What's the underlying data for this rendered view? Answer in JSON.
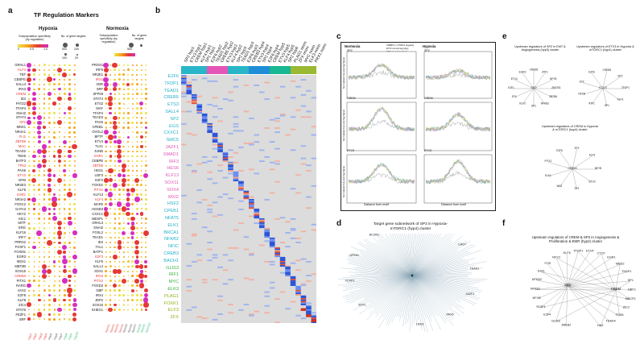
{
  "panels": {
    "a": "a",
    "b": "b",
    "c": "c",
    "d": "d",
    "e": "e",
    "f": "f"
  },
  "panel_a": {
    "title": "TF Regulation Markers",
    "hypoxia_label": "Hypoxia",
    "normoxia_label": "Normoxia",
    "legend_spec": "Subpopulation specificity (by regulation)",
    "legend_ticks": [
      "0",
      "0.5",
      "1.0"
    ],
    "legend_targets": "No. of gene targets",
    "legend_sizes": [
      "500",
      "200",
      "100",
      "20"
    ],
    "hypoxia_genes": [
      "GRHL1",
      "KLF4",
      "TEF",
      "CEBPG",
      "SALL4",
      "IRX3",
      "CREM",
      "ID4",
      "PATZ2",
      "TFAP4",
      "SNAI2",
      "STAT4",
      "SP2",
      "MNX1",
      "NR4A1",
      "FLI1",
      "ZBTB6",
      "MAC",
      "TEAD2",
      "TBX5",
      "BATF3",
      "TP63",
      "PAX6",
      "ETV3",
      "MYB",
      "NR2E3",
      "KLF5",
      "ESR1",
      "NR4A2",
      "FOXC2",
      "GATA3",
      "HEY2",
      "HIC1",
      "MITF",
      "ERG",
      "KLF16",
      "IRF7",
      "PRRX2",
      "FOXF1",
      "FOXM1",
      "EGR3",
      "MSX1",
      "MEF2B",
      "SOX15",
      "CREB3",
      "PITX1",
      "RARG",
      "VAX2",
      "E2F8",
      "KLF8",
      "ZIC4",
      "STAT6",
      "FEZF1",
      "SRF"
    ],
    "normoxia_genes": [
      "PROX1",
      "IRF5",
      "NR2E1",
      "IRX1",
      "VDR",
      "SRF",
      "ZFP28",
      "STAT4",
      "ETS2",
      "MAF",
      "TFAP4",
      "TEAD3",
      "PAX6",
      "CPEB1",
      "OVOL2",
      "BPTF",
      "ETV4",
      "TLX1",
      "JUNB",
      "ESR1",
      "CEBPB",
      "ZBTB6",
      "HES1",
      "USF3",
      "E2F2",
      "FOXD1",
      "PITX1",
      "KLF13",
      "KLF4",
      "MAFB",
      "HOXB3",
      "CXXC1",
      "MESP1",
      "GRHL3",
      "SNAI2",
      "FOXL2",
      "TEAD1",
      "ID4",
      "TAL1",
      "BATF1",
      "E2F3",
      "KLF5",
      "SALL4",
      "SOX1",
      "IRX3",
      "PITX2",
      "FOXD3",
      "GBP",
      "IRX4",
      "JDP2",
      "SOX15",
      "EHEG1"
    ],
    "hypoxia_red": [
      "KLF4",
      "CREM",
      "SP2",
      "FLI1",
      "ZBTB6",
      "MAC",
      "TP63",
      "ETV3",
      "ESR1",
      "CREB3"
    ],
    "normoxia_red": [
      "IRX1",
      "ESR1",
      "ZBTB6",
      "PITX1",
      "KLF4",
      "CREB3",
      "E2F3",
      "IRX3",
      "PITX2"
    ],
    "hypoxia_clusters": [
      "Hyp1",
      "Hyp2",
      "Hyp3",
      "Hyp4",
      "Hyp5",
      "Hyp6",
      "Hyp7",
      "Hyp8",
      "Hyp9",
      "Hyp10"
    ],
    "normoxia_clusters": [
      "Norm1",
      "Norm2",
      "Norm3",
      "Norm4",
      "Norm5",
      "Norm6",
      "Norm7",
      "Norm8",
      "Norm9",
      "Norm10"
    ]
  },
  "panel_b": {
    "columns": [
      "SP2 hyp1",
      "ETV3 hyp1",
      "CREM hyp1",
      "KLF4 hyp1",
      "SP1 hyp1",
      "E2F6 hyp2",
      "TEAD1 hyp2",
      "CREB5 hyp2",
      "ETV3 hyp2",
      "KLF4 hyp2",
      "SP2 hyp3",
      "TEAD1 hyp3",
      "E2F6 hyp3",
      "CREB3 hyp4",
      "ETV3 hyp4",
      "SP2 hyp4",
      "E2F6 hyp4",
      "CREM hyp5",
      "ETV3 hyp5",
      "KLF4 hyp5",
      "SP2 hyp6",
      "PLAG1 norm",
      "ZFX norm",
      "MYC norm",
      "ELK3 norm",
      "PRX1 norm"
    ],
    "column_colors": [
      "#29b6c8",
      "#29b6c8",
      "#29b6c8",
      "#29b6c8",
      "#29b6c8",
      "#e456b7",
      "#e456b7",
      "#e456b7",
      "#e456b7",
      "#29b6c8",
      "#29b6c8",
      "#29b6c8",
      "#29b6c8",
      "#1f8ed6",
      "#1f8ed6",
      "#1f8ed6",
      "#1f8ed6",
      "#19b893",
      "#19b893",
      "#19b893",
      "#19b893",
      "#9bb833",
      "#9bb833",
      "#9bb833",
      "#9bb833",
      "#9bb833"
    ],
    "row_labels": [
      {
        "text": "E2F6",
        "color": "#23b1c9"
      },
      {
        "text": "TFDP1",
        "color": "#23b1c9"
      },
      {
        "text": "TEAD1",
        "color": "#23b1c9"
      },
      {
        "text": "CREB5",
        "color": "#23b1c9"
      },
      {
        "text": "ETS3",
        "color": "#23b1c9"
      },
      {
        "text": "SALL4",
        "color": "#23b1c9"
      },
      {
        "text": "SP2",
        "color": "#23b1c9"
      },
      {
        "text": "EGS",
        "color": "#23b1c9"
      },
      {
        "text": "CXXC1",
        "color": "#23b1c9"
      },
      {
        "text": "SMC5",
        "color": "#23b1c9"
      },
      {
        "text": "JAZF1",
        "color": "#e456b7"
      },
      {
        "text": "SMAD1",
        "color": "#e456b7"
      },
      {
        "text": "IRF3",
        "color": "#e456b7"
      },
      {
        "text": "HES6",
        "color": "#e456b7"
      },
      {
        "text": "KLF13",
        "color": "#e456b7"
      },
      {
        "text": "SOX11",
        "color": "#e456b7"
      },
      {
        "text": "SOX4",
        "color": "#e456b7"
      },
      {
        "text": "MXI2",
        "color": "#e456b7"
      },
      {
        "text": "HSF2",
        "color": "#23b1c9"
      },
      {
        "text": "CPEB1",
        "color": "#23b1c9"
      },
      {
        "text": "NFAT5",
        "color": "#23b1c9"
      },
      {
        "text": "ELK1",
        "color": "#23b1c9"
      },
      {
        "text": "BRCA1",
        "color": "#23b1c9"
      },
      {
        "text": "NFKB2",
        "color": "#23b1c9"
      },
      {
        "text": "NFIC",
        "color": "#23b1c9"
      },
      {
        "text": "CREB3",
        "color": "#23b1c9"
      },
      {
        "text": "BACH1",
        "color": "#23b1c9"
      },
      {
        "text": "GLIS3",
        "color": "#38b53c"
      },
      {
        "text": "IRF1",
        "color": "#38b53c"
      },
      {
        "text": "MYC",
        "color": "#38b53c"
      },
      {
        "text": "ELK3",
        "color": "#38b53c"
      },
      {
        "text": "PLAG1",
        "color": "#8fb019"
      },
      {
        "text": "FOXK1",
        "color": "#8fb019"
      },
      {
        "text": "ELF3",
        "color": "#8fb019"
      },
      {
        "text": "ZFX",
        "color": "#8fb019"
      }
    ]
  },
  "panel_c": {
    "col_titles": [
      "Normoxia",
      "Hypoxia"
    ],
    "rows": [
      "SP2",
      "CREM",
      "ETV3"
    ],
    "y_axis": "Normalized Cut-and-Tag Signal",
    "x_axis": "Distance from motif",
    "legend": [
      "CREB5 or mTORC1 targeting",
      "ETV3 cut-and-tag (Hyp)",
      "SP2 cut-and-tag (Hyp)",
      "Regulator distributions Hyp1",
      "Random ctrl"
    ]
  },
  "panel_d": {
    "title": "Target gene subnetwork of SP2 in Hypoxia-mTORC1 (hyp4) cluster",
    "nodes": [
      "JAZF1",
      "PAX6",
      "LMO2",
      "SP2",
      "SOX1",
      "FOXP1",
      "NFKB1",
      "BCOR1",
      "ZIC2",
      "RARG",
      "LMO7",
      "TEAD1"
    ]
  },
  "panel_e": {
    "sub1_title": "Upstream regulators of SP2 in EMT & Angiogenesis (hyp3) cluster",
    "sub1_nodes": [
      "SP2",
      "ZBTB6",
      "NFKB2",
      "SP1",
      "KLF3",
      "ZFX",
      "E2F1",
      "ETV4",
      "EGR3",
      "CREB5",
      "ATF1",
      "NFYB",
      "ZNF281"
    ],
    "sub2_title": "Upstream regulators of ETV3 in Hypoxia & mTORC1 (hyp4) cluster",
    "sub2_nodes": [
      "ETV3",
      "KLF3",
      "SP1",
      "ATF1",
      "NFYB",
      "ZFX",
      "E2F6",
      "CREB5",
      "SP2",
      "TFDP1"
    ],
    "sub3_title": "Upstream regulators of CREM in Hypoxia & mTORC1 (hyp4) cluster",
    "sub3_nodes": [
      "CREM",
      "ETV3",
      "SP1",
      "MAZ",
      "ELK1",
      "PITX1",
      "E2F6",
      "ZFX",
      "KLF3",
      "NFYB"
    ]
  },
  "panel_f": {
    "title": "Upstream regulators of CREM & SP2 in Angiogenesis & Proliferation & EMR (hyp2) cluster",
    "nodes": [
      "CTCF",
      "EGR1",
      "MBD2",
      "THAP1",
      "SP1",
      "NRF1",
      "MECP2",
      "ZIC2",
      "FOS8",
      "TEAD4",
      "HAZ",
      "SP2",
      "CREM",
      "JMEB2",
      "GLIS3",
      "E2F4",
      "YEZF1",
      "NFYB",
      "NFKB1",
      "NFKB2",
      "JHX1",
      "FOS",
      "NFYC",
      "KLF6",
      "TFDP1",
      "ETV4"
    ]
  },
  "colors": {
    "red": "#e53935",
    "magenta": "#d62fbf",
    "orange": "#f5a31c",
    "yellow": "#ece34a",
    "cyan": "#29b6c8"
  }
}
